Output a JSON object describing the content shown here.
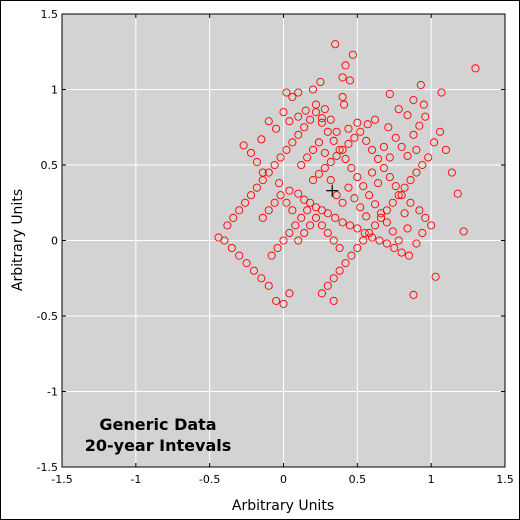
{
  "chart_data": {
    "type": "scatter",
    "title": "",
    "xlabel": "Arbitrary Units",
    "ylabel": "Arbitrary Units",
    "xlim": [
      -1.5,
      1.5
    ],
    "ylim": [
      -1.5,
      1.5
    ],
    "xticks": [
      -1.5,
      -1,
      -0.5,
      0,
      0.5,
      1,
      1.5
    ],
    "yticks": [
      -1.5,
      -1,
      -0.5,
      0,
      0.5,
      1,
      1.5
    ],
    "xtick_labels": [
      "-1.5",
      "-1",
      "-0.5",
      "0",
      "0.5",
      "1",
      "1.5"
    ],
    "ytick_labels": [
      "-1.5",
      "-1",
      "-0.5",
      "0",
      "0.5",
      "1",
      "1.5"
    ],
    "grid": true,
    "background_color": "#d3d3d3",
    "grid_color": "#ffffff",
    "marker_color": "#ff0000",
    "marker": "open-circle",
    "annotation_lines": [
      "Generic Data",
      "20-year Intevals"
    ],
    "centroid": {
      "x": 0.33,
      "y": 0.33,
      "marker": "plus",
      "color": "#000000"
    },
    "series": [
      {
        "points": [
          [
            0.35,
            1.3
          ],
          [
            0.47,
            1.23
          ],
          [
            1.3,
            1.14
          ],
          [
            0.42,
            1.16
          ],
          [
            0.4,
            1.08
          ],
          [
            0.45,
            1.06
          ],
          [
            0.2,
            1.0
          ],
          [
            0.25,
            1.05
          ],
          [
            0.02,
            0.98
          ],
          [
            0.06,
            0.95
          ],
          [
            0.1,
            0.98
          ],
          [
            0.4,
            0.95
          ],
          [
            0.41,
            0.9
          ],
          [
            0.93,
            1.03
          ],
          [
            1.07,
            0.98
          ],
          [
            0.72,
            0.97
          ],
          [
            0.95,
            0.9
          ],
          [
            0.88,
            0.93
          ],
          [
            0.78,
            0.87
          ],
          [
            0.84,
            0.83
          ],
          [
            0.62,
            0.8
          ],
          [
            0.57,
            0.77
          ],
          [
            0.71,
            0.75
          ],
          [
            0.5,
            0.78
          ],
          [
            0.44,
            0.74
          ],
          [
            0.36,
            0.72
          ],
          [
            0.32,
            0.8
          ],
          [
            0.26,
            0.81
          ],
          [
            0.28,
            0.87
          ],
          [
            0.22,
            0.9
          ],
          [
            0.15,
            0.86
          ],
          [
            0.1,
            0.82
          ],
          [
            0.04,
            0.79
          ],
          [
            0.0,
            0.85
          ],
          [
            -0.05,
            0.74
          ],
          [
            -0.1,
            0.79
          ],
          [
            -0.15,
            0.67
          ],
          [
            -0.27,
            0.63
          ],
          [
            -0.22,
            0.58
          ],
          [
            -0.18,
            0.52
          ],
          [
            -0.14,
            0.45
          ],
          [
            -0.03,
            0.38
          ],
          [
            0.04,
            0.33
          ],
          [
            0.1,
            0.31
          ],
          [
            0.14,
            0.27
          ],
          [
            0.18,
            0.25
          ],
          [
            0.22,
            0.22
          ],
          [
            0.26,
            0.2
          ],
          [
            0.3,
            0.18
          ],
          [
            0.35,
            0.15
          ],
          [
            0.4,
            0.12
          ],
          [
            0.45,
            0.1
          ],
          [
            0.5,
            0.08
          ],
          [
            0.55,
            0.05
          ],
          [
            0.6,
            0.02
          ],
          [
            0.65,
            0.0
          ],
          [
            0.7,
            -0.02
          ],
          [
            0.75,
            -0.05
          ],
          [
            0.8,
            -0.08
          ],
          [
            0.85,
            -0.1
          ],
          [
            0.88,
            -0.36
          ],
          [
            1.03,
            -0.24
          ],
          [
            1.22,
            0.06
          ],
          [
            1.18,
            0.31
          ],
          [
            1.14,
            0.45
          ],
          [
            1.1,
            0.6
          ],
          [
            1.06,
            0.72
          ],
          [
            1.02,
            0.65
          ],
          [
            0.98,
            0.55
          ],
          [
            0.94,
            0.5
          ],
          [
            0.9,
            0.45
          ],
          [
            0.86,
            0.4
          ],
          [
            0.82,
            0.35
          ],
          [
            0.78,
            0.3
          ],
          [
            0.74,
            0.25
          ],
          [
            0.7,
            0.2
          ],
          [
            0.66,
            0.15
          ],
          [
            0.62,
            0.1
          ],
          [
            0.58,
            0.05
          ],
          [
            0.54,
            0.0
          ],
          [
            0.5,
            -0.05
          ],
          [
            0.46,
            -0.1
          ],
          [
            0.42,
            -0.15
          ],
          [
            0.38,
            -0.2
          ],
          [
            0.34,
            -0.25
          ],
          [
            0.3,
            -0.3
          ],
          [
            0.26,
            -0.35
          ],
          [
            0.34,
            -0.4
          ],
          [
            0.04,
            -0.35
          ],
          [
            0.0,
            -0.42
          ],
          [
            -0.05,
            -0.4
          ],
          [
            -0.1,
            -0.3
          ],
          [
            -0.15,
            -0.25
          ],
          [
            -0.2,
            -0.2
          ],
          [
            -0.25,
            -0.15
          ],
          [
            -0.3,
            -0.1
          ],
          [
            -0.35,
            -0.05
          ],
          [
            -0.4,
            0.0
          ],
          [
            -0.44,
            0.02
          ],
          [
            -0.38,
            0.1
          ],
          [
            -0.34,
            0.15
          ],
          [
            -0.3,
            0.2
          ],
          [
            -0.26,
            0.25
          ],
          [
            -0.22,
            0.3
          ],
          [
            -0.18,
            0.35
          ],
          [
            -0.14,
            0.4
          ],
          [
            -0.1,
            0.45
          ],
          [
            -0.06,
            0.5
          ],
          [
            -0.02,
            0.55
          ],
          [
            0.02,
            0.6
          ],
          [
            0.06,
            0.65
          ],
          [
            0.1,
            0.7
          ],
          [
            0.14,
            0.75
          ],
          [
            0.18,
            0.8
          ],
          [
            0.22,
            0.85
          ],
          [
            0.26,
            0.78
          ],
          [
            0.3,
            0.72
          ],
          [
            0.34,
            0.66
          ],
          [
            0.38,
            0.6
          ],
          [
            0.42,
            0.54
          ],
          [
            0.46,
            0.48
          ],
          [
            0.5,
            0.42
          ],
          [
            0.54,
            0.36
          ],
          [
            0.58,
            0.3
          ],
          [
            0.62,
            0.24
          ],
          [
            0.66,
            0.18
          ],
          [
            0.7,
            0.12
          ],
          [
            0.74,
            0.06
          ],
          [
            0.78,
            0.0
          ],
          [
            0.2,
            0.4
          ],
          [
            0.24,
            0.44
          ],
          [
            0.28,
            0.48
          ],
          [
            0.32,
            0.52
          ],
          [
            0.36,
            0.56
          ],
          [
            0.4,
            0.6
          ],
          [
            0.44,
            0.64
          ],
          [
            0.48,
            0.68
          ],
          [
            0.52,
            0.72
          ],
          [
            0.56,
            0.66
          ],
          [
            0.6,
            0.6
          ],
          [
            0.64,
            0.54
          ],
          [
            0.68,
            0.48
          ],
          [
            0.72,
            0.42
          ],
          [
            0.76,
            0.36
          ],
          [
            0.8,
            0.3
          ],
          [
            0.16,
            0.2
          ],
          [
            0.12,
            0.15
          ],
          [
            0.08,
            0.1
          ],
          [
            0.04,
            0.05
          ],
          [
            0.0,
            0.0
          ],
          [
            -0.04,
            -0.05
          ],
          [
            -0.08,
            -0.1
          ],
          [
            0.1,
            0.0
          ],
          [
            0.14,
            0.05
          ],
          [
            0.18,
            0.1
          ],
          [
            0.22,
            0.15
          ],
          [
            0.26,
            0.1
          ],
          [
            0.3,
            0.05
          ],
          [
            0.34,
            0.0
          ],
          [
            0.38,
            -0.05
          ],
          [
            0.06,
            0.2
          ],
          [
            0.02,
            0.25
          ],
          [
            -0.02,
            0.3
          ],
          [
            -0.06,
            0.25
          ],
          [
            -0.1,
            0.2
          ],
          [
            -0.14,
            0.15
          ],
          [
            0.12,
            0.5
          ],
          [
            0.16,
            0.55
          ],
          [
            0.2,
            0.6
          ],
          [
            0.24,
            0.65
          ],
          [
            0.28,
            0.58
          ],
          [
            0.32,
            0.4
          ],
          [
            0.36,
            0.3
          ],
          [
            0.4,
            0.25
          ],
          [
            0.44,
            0.35
          ],
          [
            0.48,
            0.28
          ],
          [
            0.52,
            0.22
          ],
          [
            0.56,
            0.16
          ],
          [
            0.6,
            0.45
          ],
          [
            0.64,
            0.38
          ],
          [
            0.68,
            0.62
          ],
          [
            0.72,
            0.55
          ],
          [
            0.76,
            0.68
          ],
          [
            0.8,
            0.62
          ],
          [
            0.84,
            0.56
          ],
          [
            0.88,
            0.7
          ],
          [
            0.92,
            0.76
          ],
          [
            0.96,
            0.82
          ],
          [
            0.9,
            0.6
          ],
          [
            0.86,
            0.25
          ],
          [
            0.82,
            0.18
          ],
          [
            0.92,
            0.2
          ],
          [
            0.96,
            0.15
          ],
          [
            1.0,
            0.1
          ],
          [
            0.94,
            0.05
          ],
          [
            0.9,
            -0.02
          ],
          [
            0.84,
            0.08
          ]
        ]
      }
    ]
  }
}
